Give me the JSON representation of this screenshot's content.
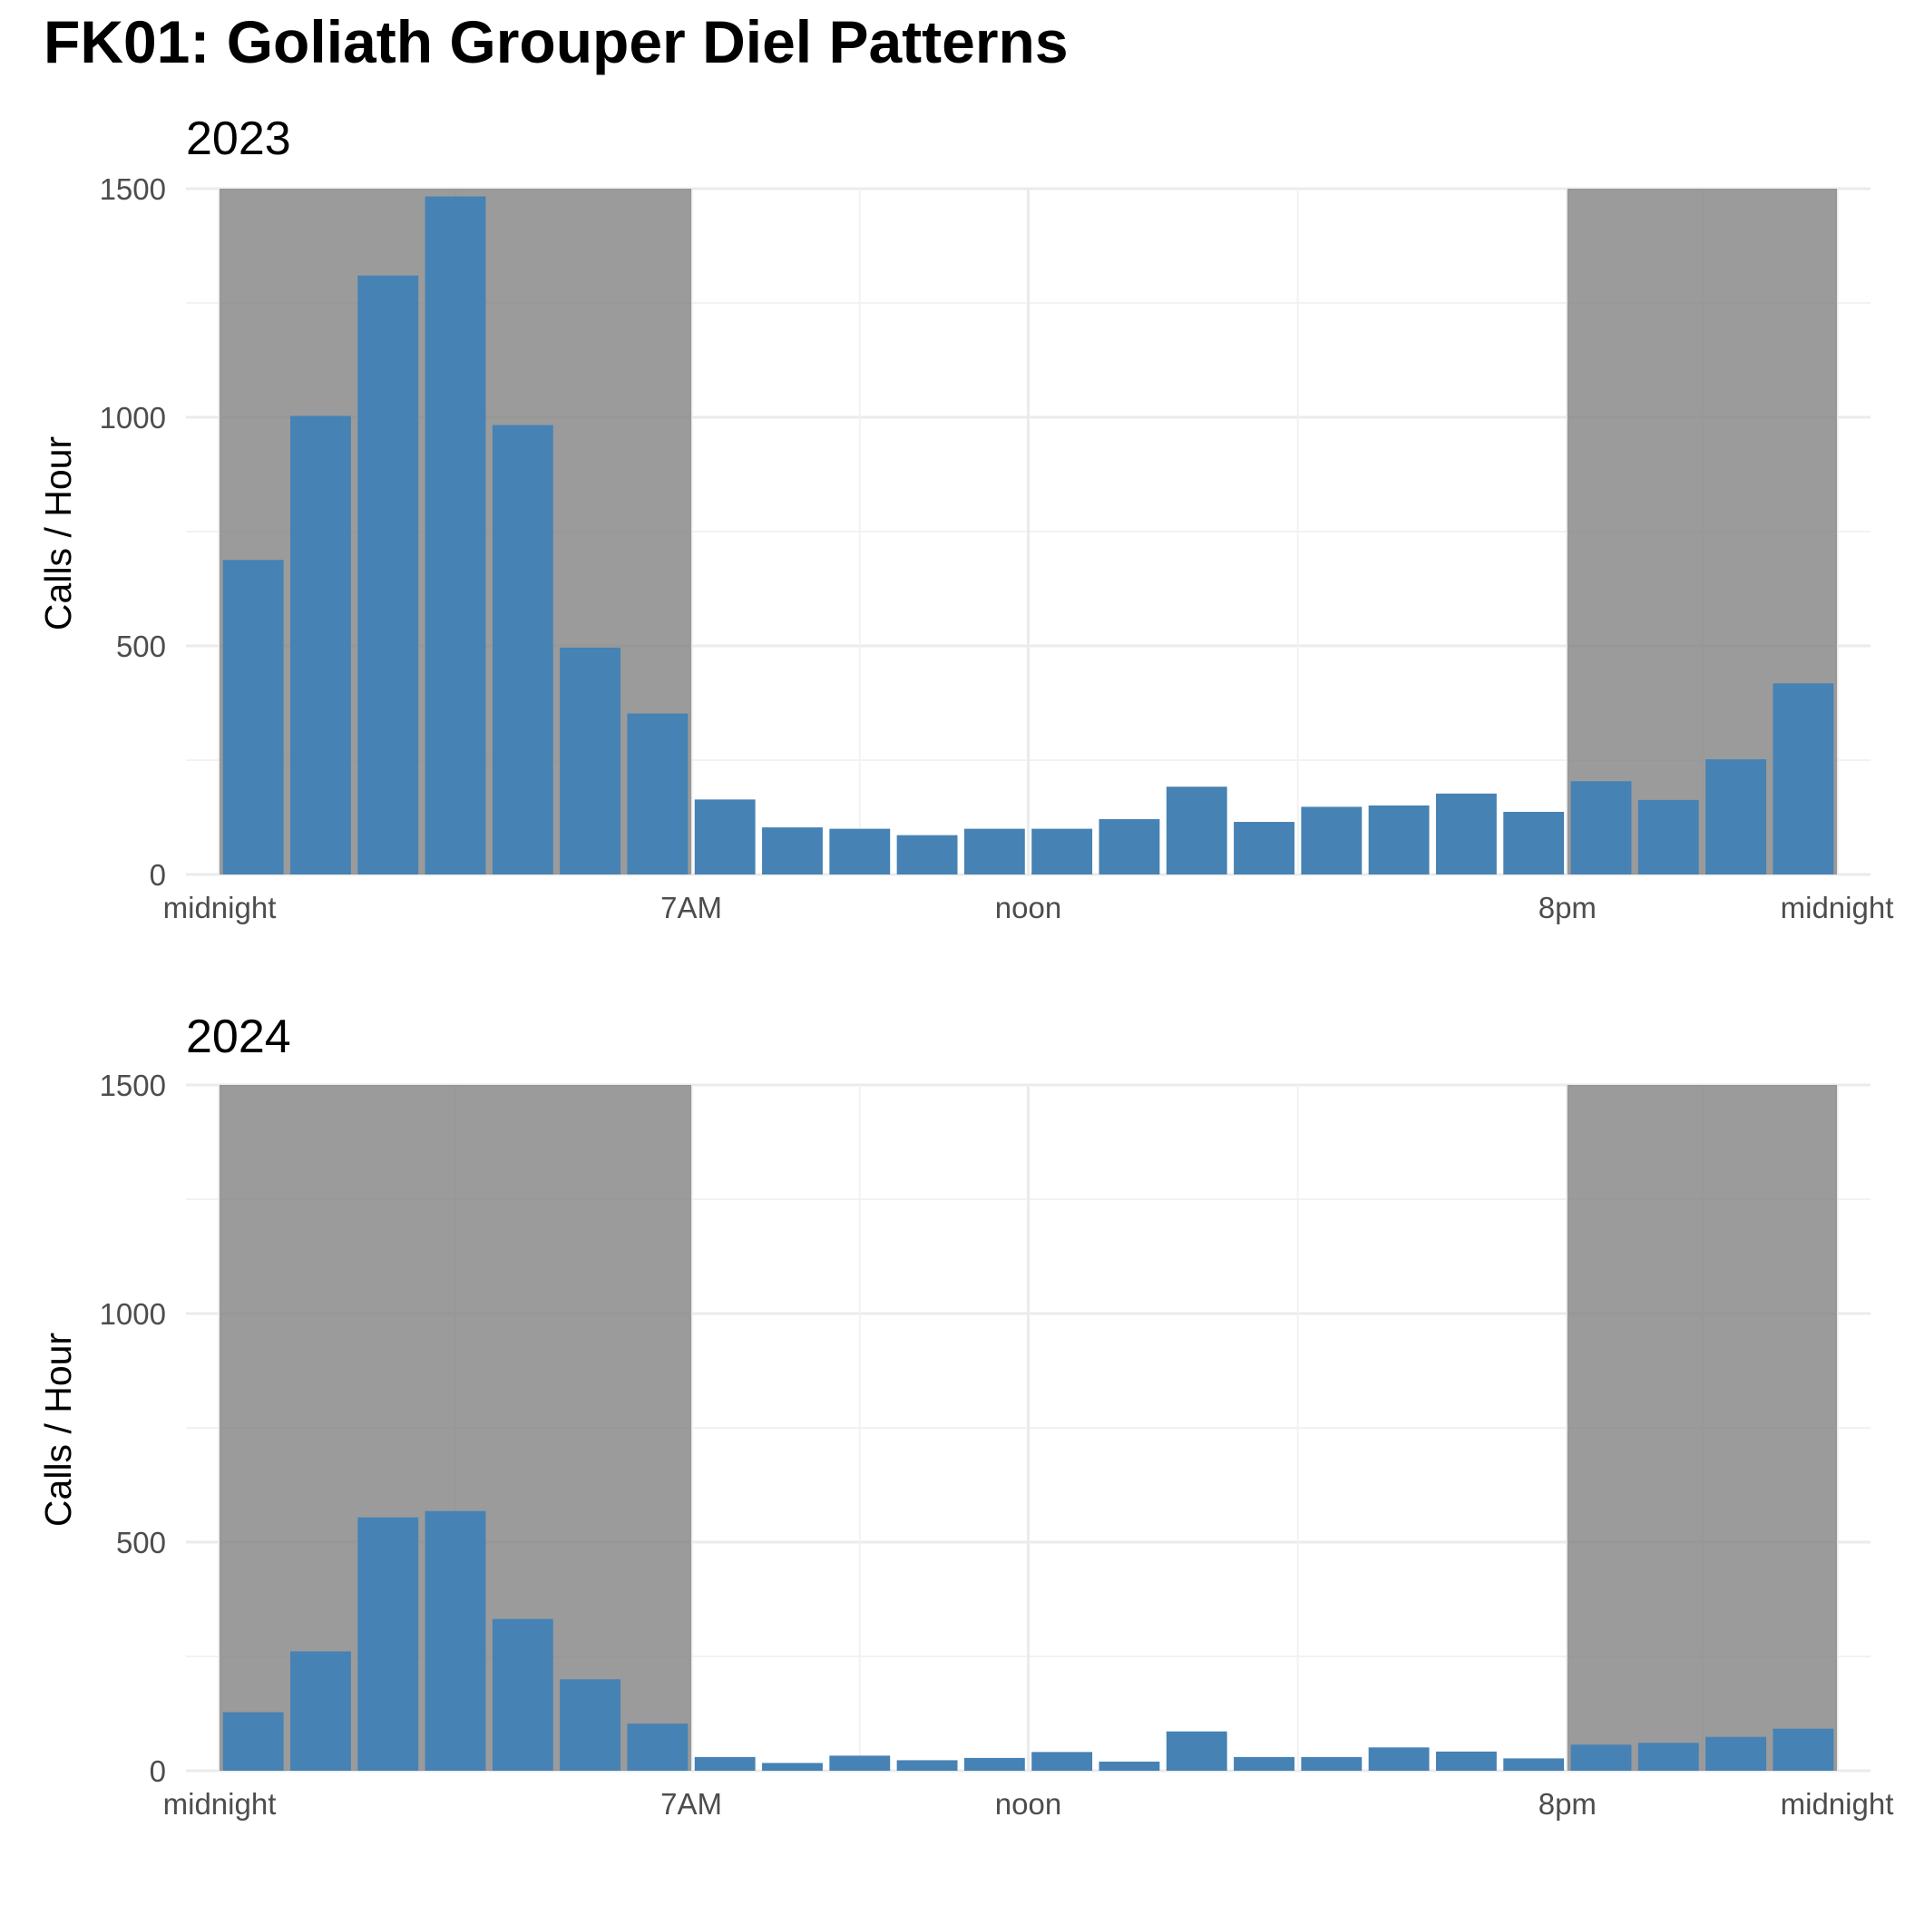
{
  "title": "FK01: Goliath Grouper Diel Patterns",
  "colors": {
    "bar": "#4682b4",
    "night_shade": "#7f7f7f",
    "grid_major": "#ebebeb",
    "grid_minor": "#f2f2f2",
    "tick_text": "#4d4d4d"
  },
  "chart_data": [
    {
      "type": "bar",
      "title": "2023",
      "xlabel": "",
      "ylabel": "Calls / Hour",
      "xlim": [
        0,
        24
      ],
      "ylim": [
        0,
        1500
      ],
      "yticks": [
        0,
        500,
        1000,
        1500
      ],
      "xticks": [
        {
          "value": 0,
          "label": "midnight"
        },
        {
          "value": 7,
          "label": "7AM"
        },
        {
          "value": 12,
          "label": "noon"
        },
        {
          "value": 20,
          "label": "8pm"
        },
        {
          "value": 24,
          "label": "midnight"
        }
      ],
      "night_shading": [
        [
          0,
          7
        ],
        [
          20,
          24
        ]
      ],
      "grid": true,
      "hours": [
        0,
        1,
        2,
        3,
        4,
        5,
        6,
        7,
        8,
        9,
        10,
        11,
        12,
        13,
        14,
        15,
        16,
        17,
        18,
        19,
        20,
        21,
        22,
        23
      ],
      "values": [
        688,
        1003,
        1310,
        1483,
        983,
        496,
        352,
        164,
        103,
        100,
        86,
        100,
        100,
        121,
        192,
        115,
        148,
        151,
        177,
        137,
        204,
        163,
        252,
        418
      ]
    },
    {
      "type": "bar",
      "title": "2024",
      "xlabel": "",
      "ylabel": "Calls / Hour",
      "xlim": [
        0,
        24
      ],
      "ylim": [
        0,
        1500
      ],
      "yticks": [
        0,
        500,
        1000,
        1500
      ],
      "xticks": [
        {
          "value": 0,
          "label": "midnight"
        },
        {
          "value": 7,
          "label": "7AM"
        },
        {
          "value": 12,
          "label": "noon"
        },
        {
          "value": 20,
          "label": "8pm"
        },
        {
          "value": 24,
          "label": "midnight"
        }
      ],
      "night_shading": [
        [
          0,
          7
        ],
        [
          20,
          24
        ]
      ],
      "grid": true,
      "hours": [
        0,
        1,
        2,
        3,
        4,
        5,
        6,
        7,
        8,
        9,
        10,
        11,
        12,
        13,
        14,
        15,
        16,
        17,
        18,
        19,
        20,
        21,
        22,
        23
      ],
      "values": [
        128,
        261,
        554,
        568,
        332,
        200,
        103,
        30,
        17,
        33,
        23,
        28,
        41,
        20,
        86,
        30,
        30,
        51,
        42,
        27,
        57,
        61,
        74,
        92
      ]
    }
  ]
}
